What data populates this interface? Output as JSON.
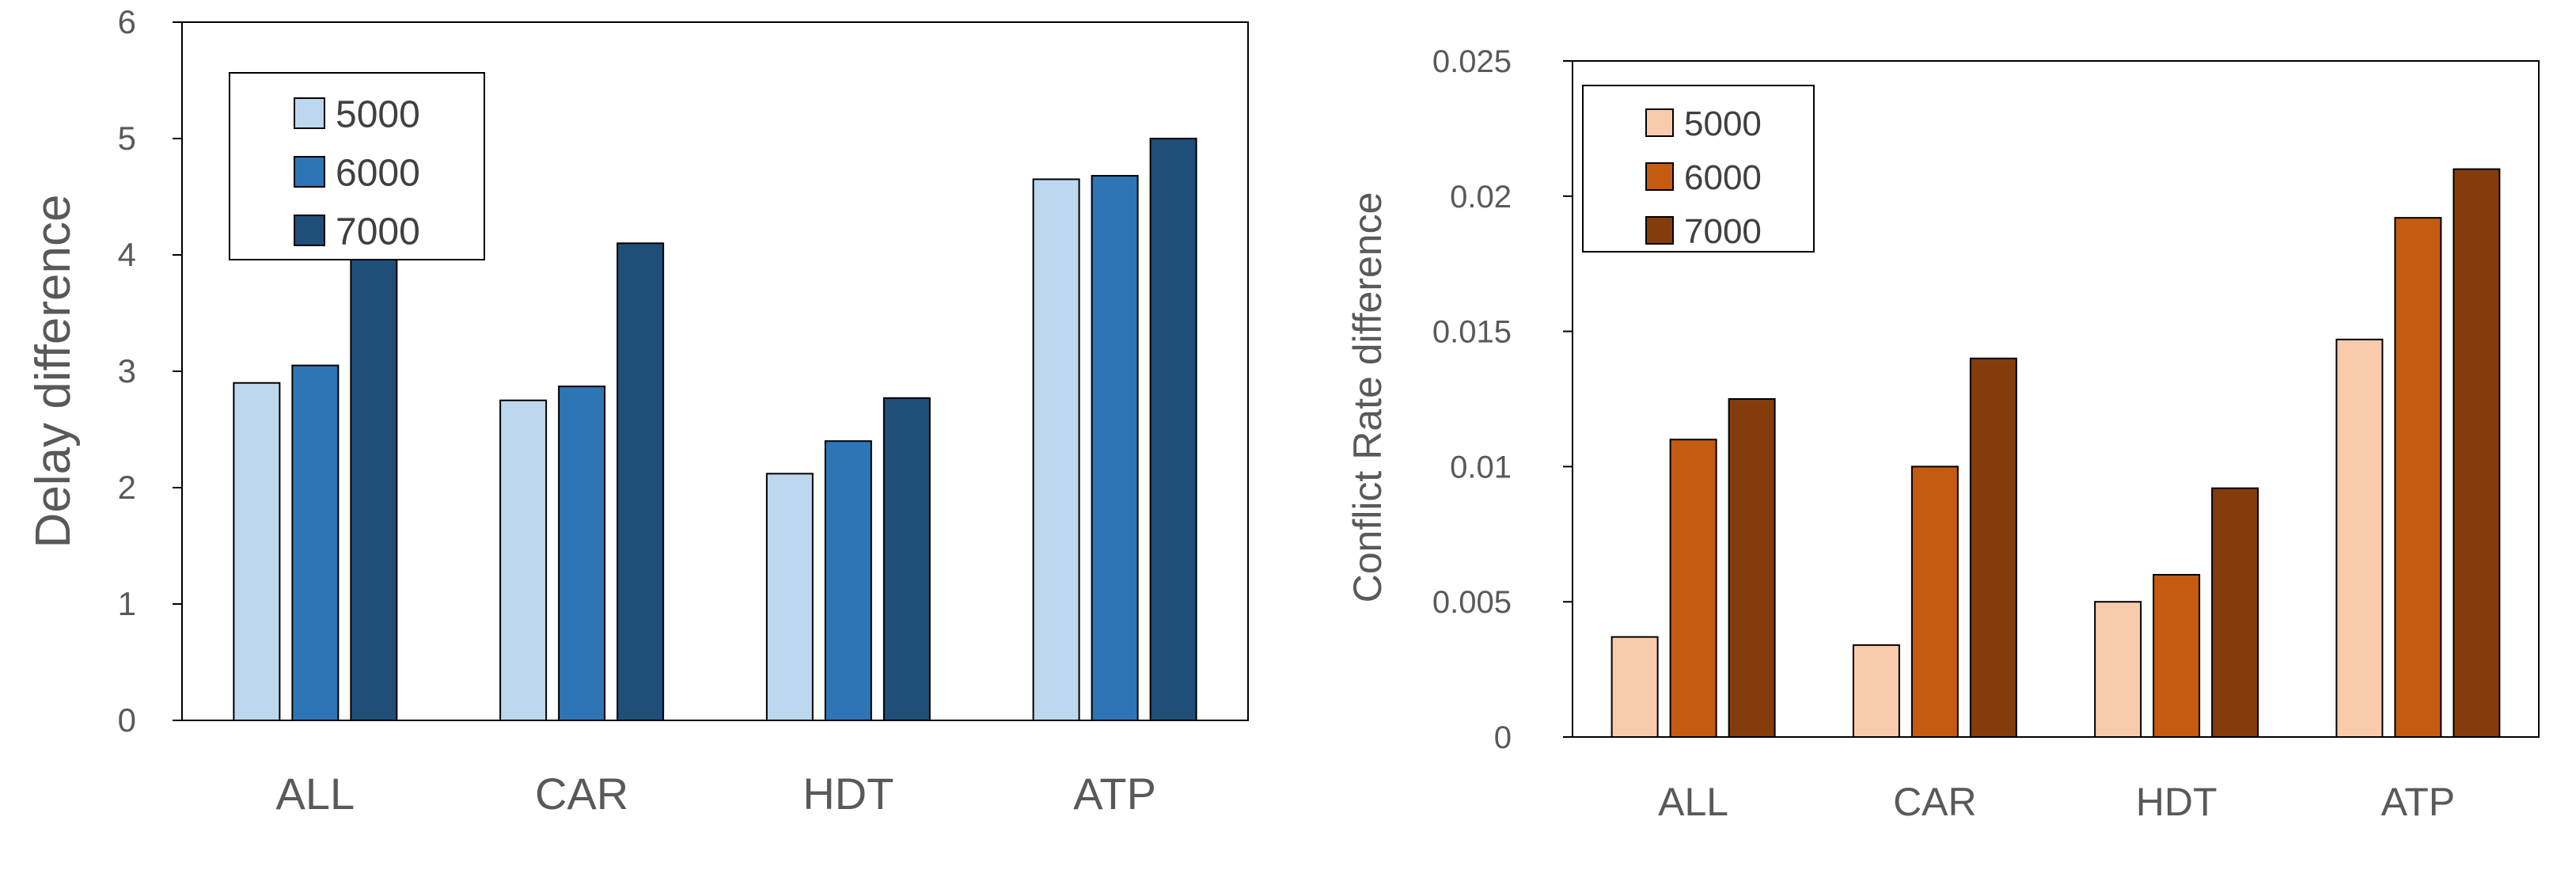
{
  "chart_data": [
    {
      "type": "bar",
      "categories": [
        "ALL",
        "CAR",
        "HDT",
        "ATP"
      ],
      "series": [
        {
          "name": "5000",
          "values": [
            2.9,
            2.75,
            2.12,
            4.65
          ],
          "color": "#bdd7ee"
        },
        {
          "name": "6000",
          "values": [
            3.05,
            2.87,
            2.4,
            4.68
          ],
          "color": "#2e75b6"
        },
        {
          "name": "7000",
          "values": [
            4.0,
            4.1,
            2.77,
            5.0
          ],
          "color": "#1f4e79"
        }
      ],
      "ylabel": "Delay difference",
      "xlabel": "",
      "ylim": [
        0,
        6
      ],
      "yticks": [
        "0",
        "1",
        "2",
        "3",
        "4",
        "5",
        "6"
      ],
      "legend_position": "top-left",
      "grid": false
    },
    {
      "type": "bar",
      "categories": [
        "ALL",
        "CAR",
        "HDT",
        "ATP"
      ],
      "series": [
        {
          "name": "5000",
          "values": [
            0.0037,
            0.0034,
            0.005,
            0.0147
          ],
          "color": "#f8cbad"
        },
        {
          "name": "6000",
          "values": [
            0.011,
            0.01,
            0.006,
            0.0192
          ],
          "color": "#c55a11"
        },
        {
          "name": "7000",
          "values": [
            0.0125,
            0.014,
            0.0092,
            0.021
          ],
          "color": "#843c0c"
        }
      ],
      "ylabel": "Conflict Rate difference",
      "xlabel": "",
      "ylim": [
        0,
        0.025
      ],
      "yticks": [
        "0",
        "0.005",
        "0.01",
        "0.015",
        "0.02",
        "0.025"
      ],
      "legend_position": "top-left",
      "grid": false
    }
  ]
}
